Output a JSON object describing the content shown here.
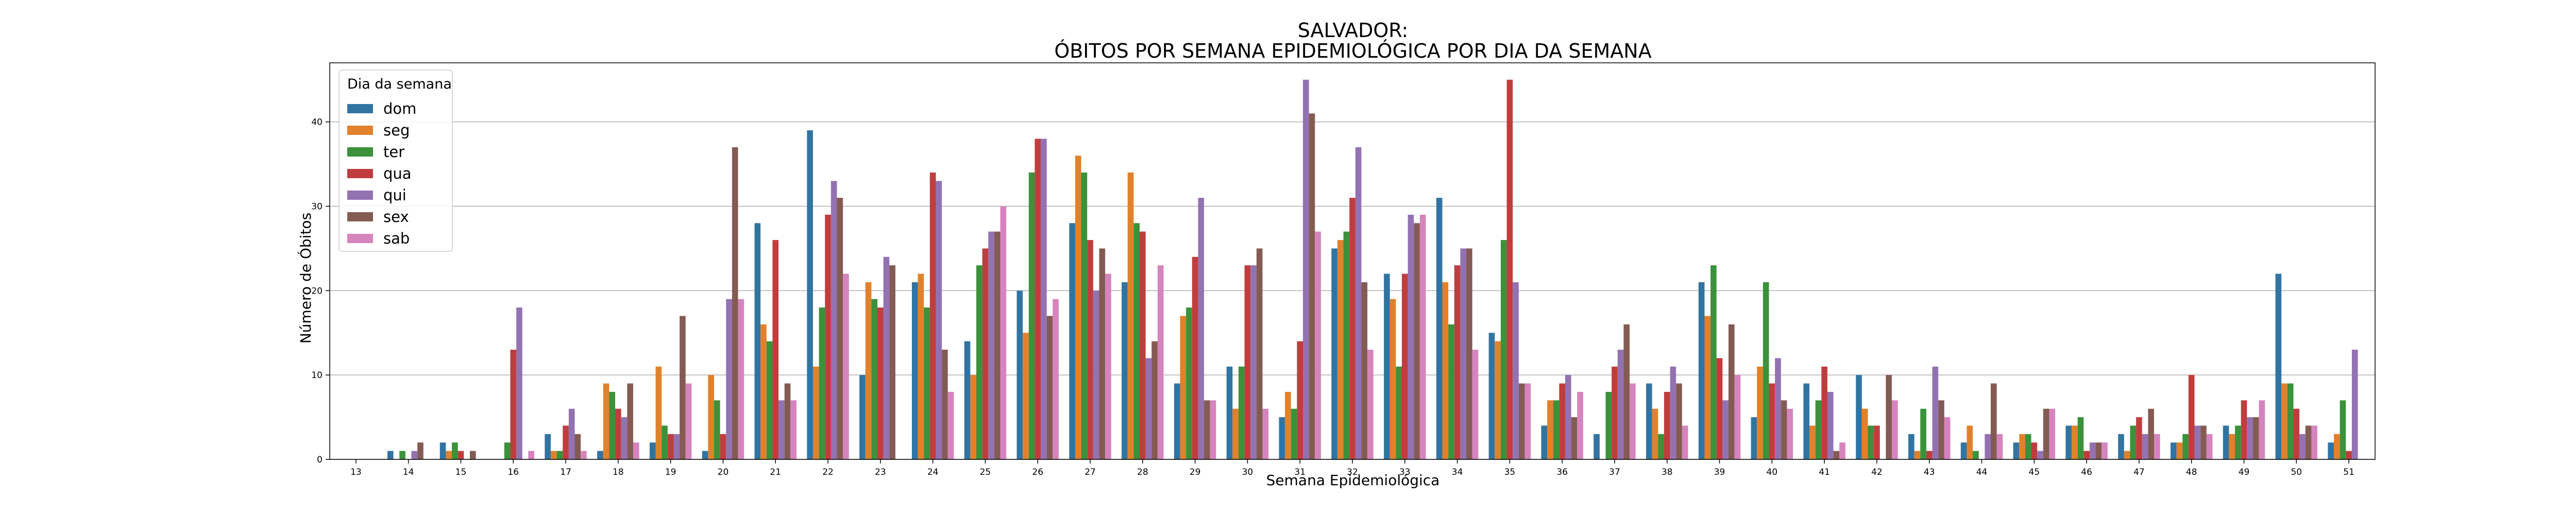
{
  "chart_data": {
    "type": "bar",
    "title": "SALVADOR:",
    "subtitle": "ÓBITOS POR SEMANA EPIDEMIOLÓGICA POR DIA DA SEMANA",
    "xlabel": "Semana Epidemiológica",
    "ylabel": "Número de Óbitos",
    "ylim": [
      0,
      47
    ],
    "yticks": [
      0,
      10,
      20,
      30,
      40
    ],
    "grid": "y",
    "legend": {
      "title": "Dia da semana",
      "placement": "top-left"
    },
    "categories": [
      "13",
      "14",
      "15",
      "16",
      "17",
      "18",
      "19",
      "20",
      "21",
      "22",
      "23",
      "24",
      "25",
      "26",
      "27",
      "28",
      "29",
      "30",
      "31",
      "32",
      "33",
      "34",
      "35",
      "36",
      "37",
      "38",
      "39",
      "40",
      "41",
      "42",
      "43",
      "44",
      "45",
      "46",
      "47",
      "48",
      "49",
      "50",
      "51"
    ],
    "series": [
      {
        "name": "dom",
        "color": "#3274a1",
        "values": [
          0,
          1,
          2,
          0,
          3,
          1,
          2,
          1,
          28,
          39,
          10,
          21,
          14,
          20,
          28,
          21,
          9,
          11,
          5,
          25,
          22,
          31,
          15,
          4,
          3,
          9,
          21,
          5,
          9,
          10,
          3,
          2,
          2,
          4,
          3,
          2,
          4,
          22,
          2
        ]
      },
      {
        "name": "seg",
        "color": "#e1812c",
        "values": [
          0,
          0,
          1,
          0,
          1,
          9,
          11,
          10,
          16,
          11,
          21,
          22,
          10,
          15,
          36,
          34,
          17,
          6,
          8,
          26,
          19,
          21,
          14,
          7,
          0,
          6,
          17,
          11,
          4,
          6,
          1,
          4,
          3,
          4,
          1,
          2,
          3,
          9,
          3
        ]
      },
      {
        "name": "ter",
        "color": "#3a923a",
        "values": [
          0,
          1,
          2,
          2,
          1,
          8,
          4,
          7,
          14,
          18,
          19,
          18,
          23,
          34,
          34,
          28,
          18,
          11,
          6,
          27,
          11,
          16,
          26,
          7,
          8,
          3,
          23,
          21,
          7,
          4,
          6,
          1,
          3,
          5,
          4,
          3,
          4,
          9,
          7
        ]
      },
      {
        "name": "qua",
        "color": "#c03d3e",
        "values": [
          0,
          0,
          1,
          13,
          4,
          6,
          3,
          3,
          26,
          29,
          18,
          34,
          25,
          38,
          26,
          27,
          24,
          23,
          14,
          31,
          22,
          23,
          45,
          9,
          11,
          8,
          12,
          9,
          11,
          4,
          1,
          0,
          2,
          1,
          5,
          10,
          7,
          6,
          1
        ]
      },
      {
        "name": "qui",
        "color": "#9372b2",
        "values": [
          0,
          1,
          0,
          18,
          6,
          5,
          3,
          19,
          7,
          33,
          24,
          33,
          27,
          38,
          20,
          12,
          31,
          23,
          45,
          37,
          29,
          25,
          21,
          10,
          13,
          11,
          7,
          12,
          8,
          0,
          11,
          3,
          1,
          2,
          3,
          4,
          5,
          3,
          13
        ]
      },
      {
        "name": "sex",
        "color": "#845b53",
        "values": [
          0,
          2,
          1,
          0,
          3,
          9,
          17,
          37,
          9,
          31,
          23,
          13,
          27,
          17,
          25,
          14,
          7,
          25,
          41,
          21,
          28,
          25,
          9,
          5,
          16,
          9,
          16,
          7,
          1,
          10,
          7,
          9,
          6,
          2,
          6,
          4,
          5,
          4,
          0
        ]
      },
      {
        "name": "sab",
        "color": "#d684bd",
        "values": [
          0,
          0,
          0,
          1,
          1,
          2,
          9,
          19,
          7,
          22,
          0,
          8,
          30,
          19,
          22,
          23,
          7,
          6,
          27,
          13,
          29,
          13,
          9,
          8,
          9,
          4,
          10,
          6,
          2,
          7,
          5,
          3,
          6,
          2,
          3,
          3,
          7,
          4,
          0
        ]
      }
    ]
  }
}
